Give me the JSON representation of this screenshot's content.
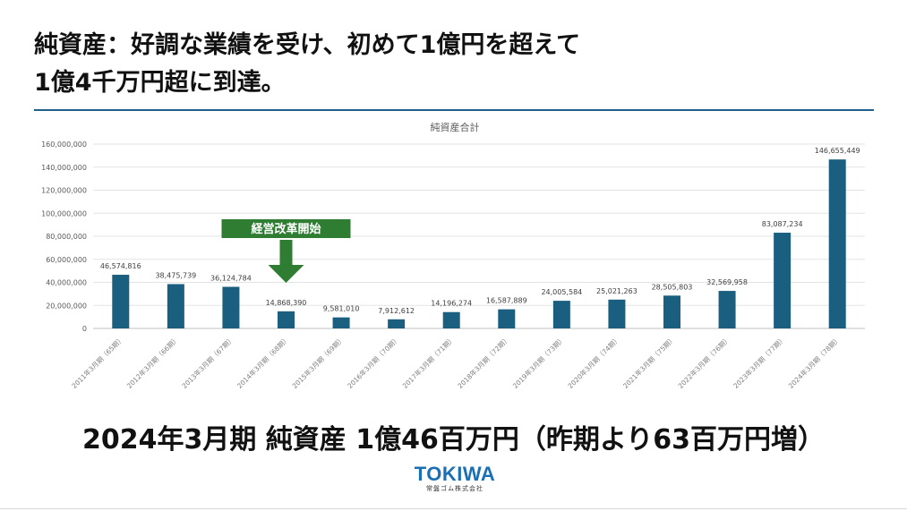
{
  "slide": {
    "title_line1": "純資産：好調な業績を受け、初めて1億円を超えて",
    "title_line2": "1億4千万円超に到達。",
    "caption": "2024年3月期 純資産 1億46百万円（昨期より63百万円増）",
    "logo_text": "TOKIWA",
    "logo_subtext": "常盤ゴム株式会社"
  },
  "colors": {
    "bar": "#1a5e80",
    "annotation": "#2e7d32",
    "rule": "#1f5f8b"
  },
  "chart_data": {
    "type": "bar",
    "title": "純資産合計",
    "categories": [
      "2011年3月期（65期）",
      "2012年3月期（66期）",
      "2013年3月期（67期）",
      "2014年3月期（68期）",
      "2015年3月期（69期）",
      "2016年3月期（70期）",
      "2017年3月期（71期）",
      "2018年3月期（72期）",
      "2019年3月期（73期）",
      "2020年3月期（74期）",
      "2021年3月期（75期）",
      "2022年3月期（76期）",
      "2023年3月期（77期）",
      "2024年3月期（78期）"
    ],
    "values": [
      46574816,
      38475739,
      36124784,
      14868390,
      9581010,
      7912612,
      14196274,
      16587889,
      24005584,
      25021263,
      28505803,
      32569958,
      83087234,
      146655449
    ],
    "data_labels": [
      "46,574,816",
      "38,475,739",
      "36,124,784",
      "14,868,390",
      "9,581,010",
      "7,912,612",
      "14,196,274",
      "16,587,889",
      "24,005,584",
      "25,021,263",
      "28,505,803",
      "32,569,958",
      "83,087,234",
      "146,655,449"
    ],
    "y_ticks": [
      0,
      20000000,
      40000000,
      60000000,
      80000000,
      100000000,
      120000000,
      140000000,
      160000000
    ],
    "y_tick_labels": [
      "0",
      "20,000,000",
      "40,000,000",
      "60,000,000",
      "80,000,000",
      "100,000,000",
      "120,000,000",
      "140,000,000",
      "160,000,000"
    ],
    "ylim": [
      0,
      160000000
    ],
    "grid": true,
    "annotation": {
      "text": "経営改革開始",
      "category_index": 3
    }
  }
}
